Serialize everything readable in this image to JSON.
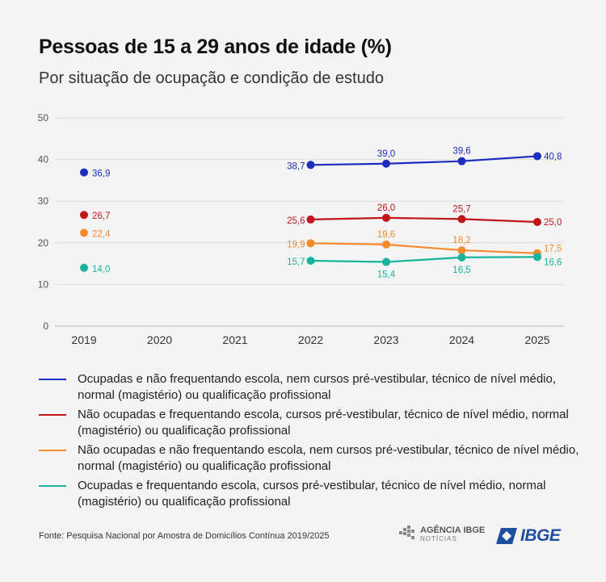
{
  "title": "Pessoas de 15 a 29 anos de idade (%)",
  "subtitle": "Por situação de ocupação e condição de estudo",
  "source": "Fonte: Pesquisa Nacional por Amostra de Domicílios Contínua 2019/2025",
  "logos": {
    "agencia_main": "AGÊNCIA IBGE",
    "agencia_sub": "NOTÍCIAS",
    "ibge": "IBGE"
  },
  "chart_data": {
    "type": "line",
    "x": [
      "2019",
      "2020",
      "2021",
      "2022",
      "2023",
      "2024",
      "2025"
    ],
    "ylim": [
      0,
      50
    ],
    "yticks": [
      0,
      10,
      20,
      30,
      40,
      50
    ],
    "grid": true,
    "legend_position": "bottom",
    "series": [
      {
        "name": "Ocupadas e não frequentando escola, nem cursos pré-vestibular, técnico de nível médio, normal (magistério) ou qualificação profissional",
        "color": "#1c2dbf",
        "values": [
          36.9,
          null,
          null,
          38.7,
          39.0,
          39.6,
          40.8
        ],
        "labels": [
          "36,9",
          null,
          null,
          "38,7",
          "39,0",
          "39,6",
          "40,8"
        ]
      },
      {
        "name": "Não ocupadas e frequentando escola, cursos pré-vestibular, técnico de nível médio, normal (magistério) ou qualificação profissional",
        "color": "#c0161c",
        "values": [
          26.7,
          null,
          null,
          25.6,
          26.0,
          25.7,
          25.0
        ],
        "labels": [
          "26,7",
          null,
          null,
          "25,6",
          "26,0",
          "25,7",
          "25,0"
        ]
      },
      {
        "name": "Não ocupadas e não frequentando escola, nem cursos pré-vestibular, técnico de nível médio, normal (magistério) ou qualificação profissional",
        "color": "#f58a2c",
        "values": [
          22.4,
          null,
          null,
          19.9,
          19.6,
          18.2,
          17.5
        ],
        "labels": [
          "22,4",
          null,
          null,
          "19,9",
          "19,6",
          "18,2",
          "17,5"
        ]
      },
      {
        "name": "Ocupadas e frequentando escola, cursos pré-vestibular, técnico de nível médio, normal (magistério) ou qualificação profissional",
        "color": "#18b39b",
        "values": [
          14.0,
          null,
          null,
          15.7,
          15.4,
          16.5,
          16.6
        ],
        "labels": [
          "14,0",
          null,
          null,
          "15,7",
          "15,4",
          "16,5",
          "16,6"
        ]
      }
    ]
  }
}
